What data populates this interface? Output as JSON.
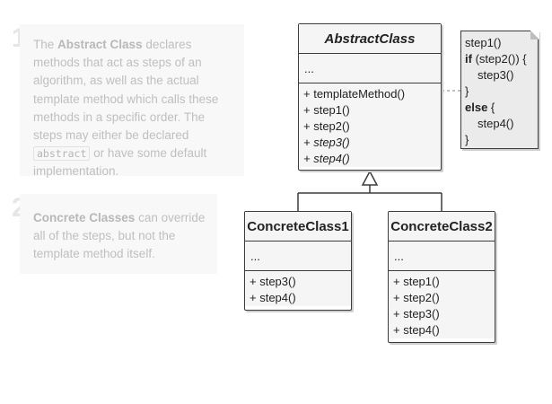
{
  "notes": [
    {
      "number": "1",
      "t1": "The ",
      "b1": "Abstract Class",
      "t2": " declares methods that act as steps of an algorithm, as well as the actual template method which calls these methods in a specific order. The steps may either be declared ",
      "code": "abstract",
      "t3": " or have some default implementation."
    },
    {
      "number": "2",
      "b1": "Concrete Classes",
      "t2": " can override all of the steps, but not the template method itself."
    }
  ],
  "abstract_class": {
    "name": "AbstractClass",
    "fields": "...",
    "ops": [
      "+ templateMethod()",
      "+ step1()",
      "+ step2()",
      "+ step3()",
      "+ step4()"
    ]
  },
  "concrete_class_1": {
    "name": "ConcreteClass1",
    "fields": "...",
    "ops": [
      "+ step3()",
      "+ step4()"
    ]
  },
  "concrete_class_2": {
    "name": "ConcreteClass2",
    "fields": "...",
    "ops": [
      "+ step1()",
      "+ step2()",
      "+ step3()",
      "+ step4()"
    ]
  },
  "code_note": {
    "l1": "step1()",
    "l2_kw": "if",
    "l2_rest": " (step2()) {",
    "l3": "step3()",
    "l4": "}",
    "l5_kw": "else",
    "l5_rest": " {",
    "l6": "step4()",
    "l7": "}"
  },
  "colors": {
    "accent_dot": "#d0021b",
    "line": "#3c3c3c",
    "dashed": "#9a9a9a"
  }
}
